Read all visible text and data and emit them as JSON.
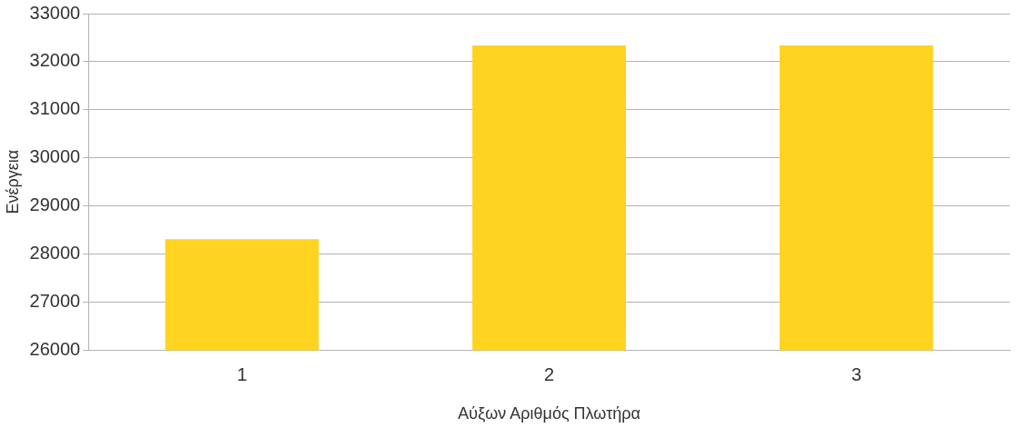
{
  "chart_data": {
    "type": "bar",
    "xlabel": "Αύξων Αριθμός Πλωτήρα",
    "ylabel": "Ενέργεια",
    "categories": [
      "1",
      "2",
      "3"
    ],
    "values": [
      28310,
      32340,
      32340
    ],
    "color": "#ffd320",
    "ylim": [
      26000,
      33000
    ],
    "yticks": [
      26000,
      27000,
      28000,
      29000,
      30000,
      31000,
      32000,
      33000
    ],
    "grid": "y"
  }
}
